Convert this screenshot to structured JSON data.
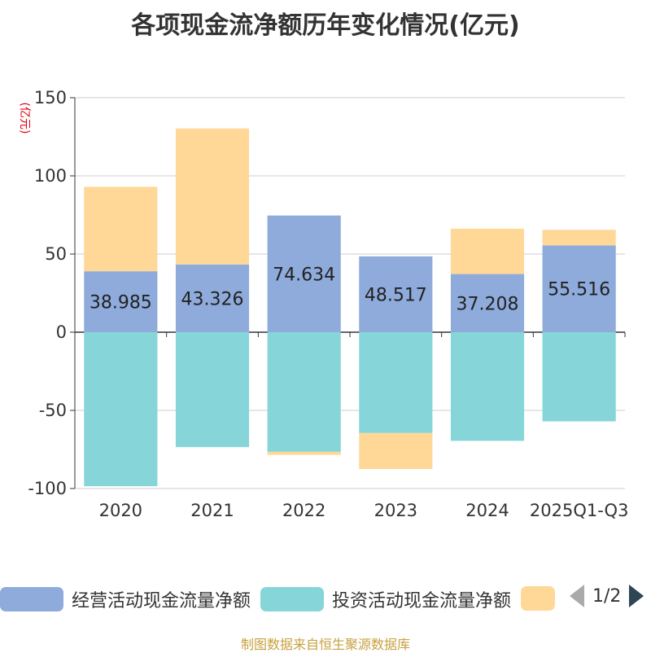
{
  "chart_data": {
    "type": "bar",
    "stacked": true,
    "title": "各项现金流净额历年变化情况(亿元)",
    "ylabel": "(亿元)",
    "ylim": [
      -100,
      150
    ],
    "yticks": [
      150,
      100,
      50,
      0,
      -50,
      -100
    ],
    "categories": [
      "2020",
      "2021",
      "2022",
      "2023",
      "2024",
      "2025Q1-Q3"
    ],
    "series": [
      {
        "name": "经营活动现金流量净额",
        "color": "#8eabdb",
        "values": [
          38.985,
          43.326,
          74.634,
          48.517,
          37.208,
          55.516
        ],
        "labels": [
          "38.985",
          "43.326",
          "74.634",
          "48.517",
          "37.208",
          "55.516"
        ]
      },
      {
        "name": "投资活动现金流量净额",
        "color": "#86d5d8",
        "values": [
          -98.5,
          -73.5,
          -76.5,
          -64.5,
          -69.5,
          -57.0
        ]
      },
      {
        "name": "",
        "color": "#ffd898",
        "values": [
          54.0,
          87.0,
          -2.0,
          -23.0,
          29.0,
          10.0
        ]
      }
    ]
  },
  "legend": {
    "items": [
      {
        "label": "经营活动现金流量净额",
        "color": "#8eabdb"
      },
      {
        "label": "投资活动现金流量净额",
        "color": "#86d5d8"
      },
      {
        "label": "",
        "color": "#ffd898"
      }
    ],
    "page": "1/2"
  },
  "source": "制图数据来自恒生聚源数据库"
}
